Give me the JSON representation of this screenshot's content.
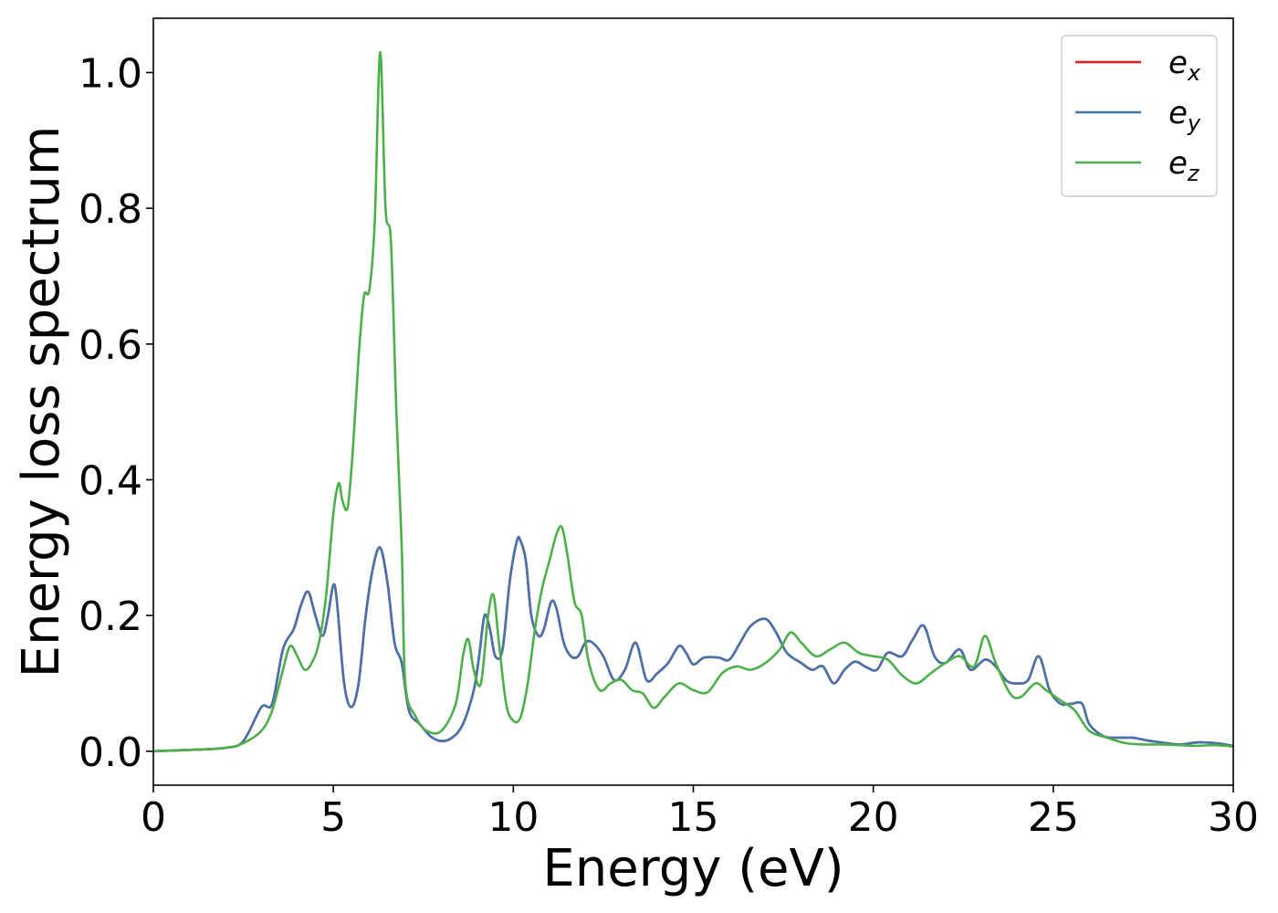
{
  "chart_data": {
    "type": "line",
    "title": "",
    "xlabel": "Energy (eV)",
    "ylabel": "Energy loss spectrum",
    "xlim": [
      0,
      30
    ],
    "ylim": [
      -0.05,
      1.08
    ],
    "xticks": [
      0,
      5,
      10,
      15,
      20,
      25,
      30
    ],
    "xtick_labels": [
      "0",
      "5",
      "10",
      "15",
      "20",
      "25",
      "30"
    ],
    "yticks": [
      0.0,
      0.2,
      0.4,
      0.6,
      0.8,
      1.0
    ],
    "ytick_labels": [
      "0.0",
      "0.2",
      "0.4",
      "0.6",
      "0.8",
      "1.0"
    ],
    "grid": false,
    "legend_position": "top-right",
    "series": [
      {
        "name": "e_x",
        "legend_base": "e",
        "legend_sub": "x",
        "color": "#e41a1c",
        "x": [
          0,
          1,
          2,
          2.5,
          3,
          3.3,
          3.6,
          3.9,
          4.1,
          4.3,
          4.5,
          4.7,
          4.85,
          5.0,
          5.1,
          5.3,
          5.5,
          5.7,
          5.9,
          6.1,
          6.3,
          6.5,
          6.7,
          6.9,
          7.1,
          7.4,
          7.7,
          8.0,
          8.3,
          8.6,
          8.9,
          9.05,
          9.2,
          9.35,
          9.5,
          9.7,
          9.9,
          10.1,
          10.2,
          10.35,
          10.5,
          10.7,
          10.85,
          11.05,
          11.2,
          11.4,
          11.6,
          11.8,
          12.0,
          12.2,
          12.5,
          12.8,
          13.1,
          13.4,
          13.7,
          14.0,
          14.3,
          14.6,
          14.8,
          15.0,
          15.3,
          15.7,
          16.0,
          16.3,
          16.6,
          17.0,
          17.3,
          17.6,
          18.0,
          18.3,
          18.6,
          18.9,
          19.2,
          19.5,
          19.8,
          20.1,
          20.4,
          20.8,
          21.1,
          21.4,
          21.7,
          22.0,
          22.4,
          22.7,
          23.1,
          23.4,
          23.7,
          24.0,
          24.3,
          24.6,
          24.9,
          25.2,
          25.5,
          25.8,
          26.0,
          26.4,
          26.8,
          27.2,
          27.6,
          28.0,
          28.5,
          29.0,
          29.5,
          30.0
        ],
        "y": [
          0.0,
          0.002,
          0.005,
          0.015,
          0.065,
          0.07,
          0.15,
          0.18,
          0.215,
          0.235,
          0.2,
          0.17,
          0.2,
          0.245,
          0.22,
          0.1,
          0.065,
          0.1,
          0.2,
          0.27,
          0.3,
          0.25,
          0.16,
          0.13,
          0.06,
          0.04,
          0.022,
          0.015,
          0.02,
          0.04,
          0.09,
          0.14,
          0.2,
          0.18,
          0.14,
          0.15,
          0.25,
          0.31,
          0.31,
          0.28,
          0.2,
          0.17,
          0.18,
          0.22,
          0.21,
          0.16,
          0.14,
          0.14,
          0.16,
          0.16,
          0.14,
          0.105,
          0.12,
          0.16,
          0.105,
          0.115,
          0.13,
          0.155,
          0.145,
          0.128,
          0.138,
          0.138,
          0.135,
          0.16,
          0.185,
          0.195,
          0.175,
          0.145,
          0.13,
          0.12,
          0.125,
          0.1,
          0.12,
          0.132,
          0.124,
          0.12,
          0.145,
          0.14,
          0.165,
          0.185,
          0.14,
          0.13,
          0.15,
          0.12,
          0.135,
          0.125,
          0.104,
          0.1,
          0.105,
          0.14,
          0.09,
          0.07,
          0.07,
          0.07,
          0.04,
          0.022,
          0.02,
          0.02,
          0.016,
          0.013,
          0.01,
          0.013,
          0.012,
          0.008
        ]
      },
      {
        "name": "e_y",
        "legend_base": "e",
        "legend_sub": "y",
        "color": "#4574ad",
        "x": [
          0,
          1,
          2,
          2.5,
          3,
          3.3,
          3.6,
          3.9,
          4.1,
          4.3,
          4.5,
          4.7,
          4.85,
          5.0,
          5.1,
          5.3,
          5.5,
          5.7,
          5.9,
          6.1,
          6.3,
          6.5,
          6.7,
          6.9,
          7.1,
          7.4,
          7.7,
          8.0,
          8.3,
          8.6,
          8.9,
          9.05,
          9.2,
          9.35,
          9.5,
          9.7,
          9.9,
          10.1,
          10.2,
          10.35,
          10.5,
          10.7,
          10.85,
          11.05,
          11.2,
          11.4,
          11.6,
          11.8,
          12.0,
          12.2,
          12.5,
          12.8,
          13.1,
          13.4,
          13.7,
          14.0,
          14.3,
          14.6,
          14.8,
          15.0,
          15.3,
          15.7,
          16.0,
          16.3,
          16.6,
          17.0,
          17.3,
          17.6,
          18.0,
          18.3,
          18.6,
          18.9,
          19.2,
          19.5,
          19.8,
          20.1,
          20.4,
          20.8,
          21.1,
          21.4,
          21.7,
          22.0,
          22.4,
          22.7,
          23.1,
          23.4,
          23.7,
          24.0,
          24.3,
          24.6,
          24.9,
          25.2,
          25.5,
          25.8,
          26.0,
          26.4,
          26.8,
          27.2,
          27.6,
          28.0,
          28.5,
          29.0,
          29.5,
          30.0
        ],
        "y": [
          0.0,
          0.002,
          0.005,
          0.015,
          0.065,
          0.07,
          0.15,
          0.18,
          0.215,
          0.235,
          0.2,
          0.17,
          0.2,
          0.245,
          0.22,
          0.1,
          0.065,
          0.1,
          0.2,
          0.27,
          0.3,
          0.25,
          0.16,
          0.13,
          0.06,
          0.04,
          0.022,
          0.015,
          0.02,
          0.04,
          0.09,
          0.14,
          0.2,
          0.18,
          0.14,
          0.15,
          0.25,
          0.31,
          0.31,
          0.28,
          0.2,
          0.17,
          0.18,
          0.22,
          0.21,
          0.16,
          0.14,
          0.14,
          0.16,
          0.16,
          0.14,
          0.105,
          0.12,
          0.16,
          0.105,
          0.115,
          0.13,
          0.155,
          0.145,
          0.128,
          0.138,
          0.138,
          0.135,
          0.16,
          0.185,
          0.195,
          0.175,
          0.145,
          0.13,
          0.12,
          0.125,
          0.1,
          0.12,
          0.132,
          0.124,
          0.12,
          0.145,
          0.14,
          0.165,
          0.185,
          0.14,
          0.13,
          0.15,
          0.12,
          0.135,
          0.125,
          0.104,
          0.1,
          0.105,
          0.14,
          0.09,
          0.07,
          0.07,
          0.07,
          0.04,
          0.022,
          0.02,
          0.02,
          0.016,
          0.013,
          0.01,
          0.013,
          0.012,
          0.008
        ]
      },
      {
        "name": "e_z",
        "legend_base": "e",
        "legend_sub": "z",
        "color": "#4daf4a",
        "x": [
          0,
          1,
          2,
          2.5,
          3,
          3.3,
          3.6,
          3.8,
          4.0,
          4.2,
          4.4,
          4.6,
          4.8,
          5.0,
          5.15,
          5.25,
          5.4,
          5.55,
          5.7,
          5.85,
          6.0,
          6.15,
          6.3,
          6.45,
          6.6,
          6.75,
          6.9,
          7.0,
          7.3,
          7.6,
          8.0,
          8.4,
          8.6,
          8.75,
          8.9,
          9.1,
          9.3,
          9.45,
          9.6,
          9.8,
          10.0,
          10.2,
          10.4,
          10.6,
          10.8,
          11.0,
          11.2,
          11.35,
          11.5,
          11.7,
          11.9,
          12.1,
          12.4,
          12.7,
          13.0,
          13.3,
          13.6,
          13.9,
          14.2,
          14.6,
          15.0,
          15.4,
          15.8,
          16.2,
          16.6,
          17.0,
          17.4,
          17.7,
          18.0,
          18.4,
          18.8,
          19.2,
          19.6,
          20.0,
          20.4,
          20.8,
          21.2,
          21.6,
          22.0,
          22.4,
          22.8,
          23.1,
          23.4,
          23.8,
          24.1,
          24.5,
          24.8,
          25.2,
          25.6,
          26.0,
          26.5,
          27.0,
          27.5,
          28.0,
          28.5,
          29.0,
          29.5,
          30.0
        ],
        "y": [
          0.0,
          0.002,
          0.005,
          0.012,
          0.03,
          0.06,
          0.12,
          0.155,
          0.14,
          0.12,
          0.13,
          0.16,
          0.23,
          0.35,
          0.395,
          0.37,
          0.36,
          0.45,
          0.58,
          0.67,
          0.68,
          0.78,
          1.03,
          0.8,
          0.75,
          0.5,
          0.3,
          0.1,
          0.05,
          0.03,
          0.03,
          0.07,
          0.14,
          0.165,
          0.12,
          0.1,
          0.2,
          0.23,
          0.16,
          0.07,
          0.045,
          0.05,
          0.1,
          0.18,
          0.24,
          0.28,
          0.32,
          0.33,
          0.29,
          0.22,
          0.2,
          0.13,
          0.09,
          0.1,
          0.105,
          0.09,
          0.085,
          0.064,
          0.08,
          0.1,
          0.09,
          0.087,
          0.115,
          0.125,
          0.12,
          0.13,
          0.15,
          0.175,
          0.16,
          0.14,
          0.15,
          0.16,
          0.145,
          0.14,
          0.135,
          0.112,
          0.1,
          0.115,
          0.13,
          0.14,
          0.125,
          0.17,
          0.13,
          0.085,
          0.08,
          0.1,
          0.09,
          0.075,
          0.06,
          0.03,
          0.02,
          0.012,
          0.01,
          0.01,
          0.009,
          0.008,
          0.009,
          0.007
        ]
      }
    ]
  }
}
